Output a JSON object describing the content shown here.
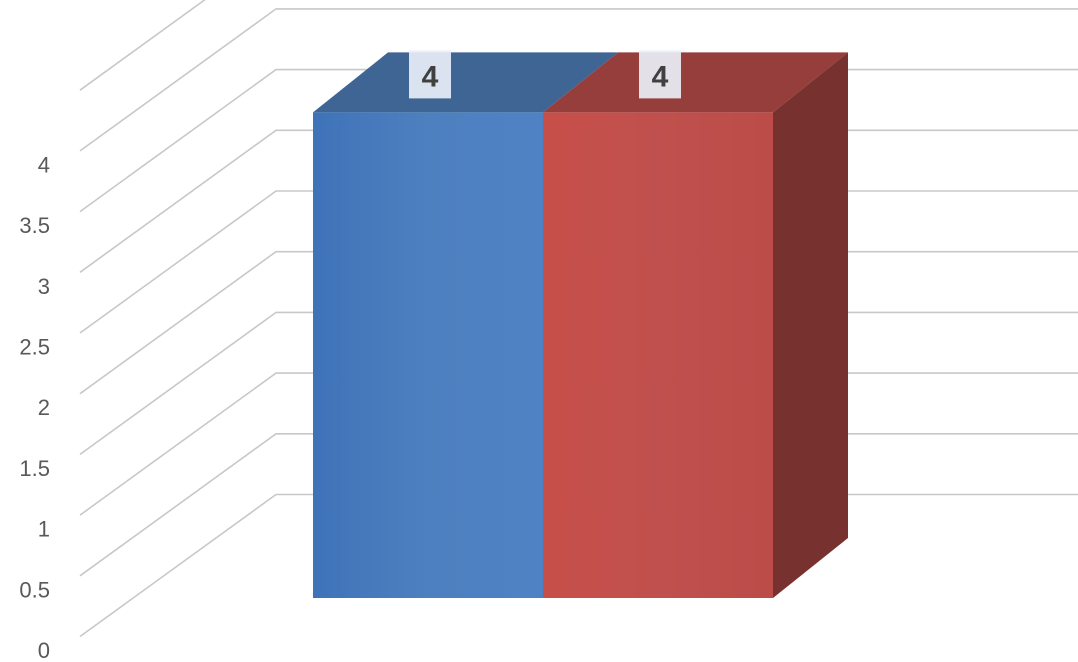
{
  "chart_data": {
    "type": "bar",
    "style": "3d-column",
    "title": "",
    "xlabel": "",
    "ylabel": "",
    "ylim": [
      0,
      4
    ],
    "yticks": [
      "0",
      "0.5",
      "1",
      "1.5",
      "2",
      "2.5",
      "3",
      "3.5",
      "4"
    ],
    "grid": true,
    "legend": "none",
    "series": [
      {
        "values": [
          4
        ],
        "color": "#4f81bd",
        "data_label": "4"
      },
      {
        "values": [
          4
        ],
        "color": "#c0504d",
        "data_label": "4"
      }
    ]
  }
}
